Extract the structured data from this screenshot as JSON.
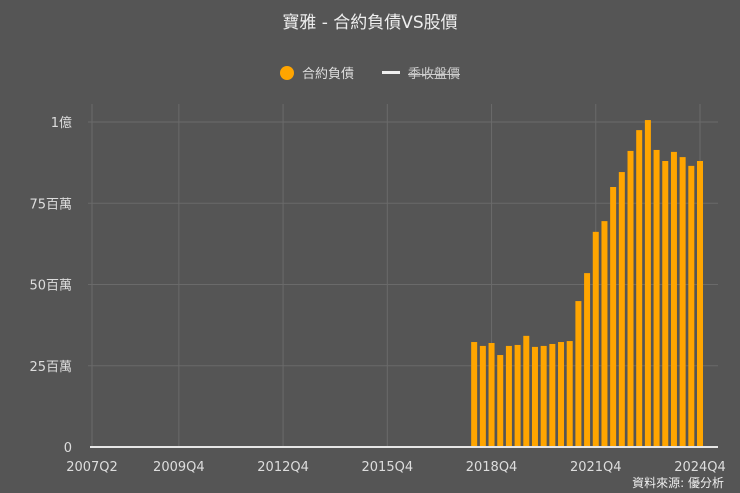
{
  "title": "寶雅 - 合約負債VS股價",
  "legend": [
    {
      "label": "合約負債",
      "marker": "circle",
      "color": "#FFA500",
      "hidden": false
    },
    {
      "label": "季收盤價",
      "marker": "line",
      "color": "#EEEEEE",
      "hidden": true
    }
  ],
  "source": "資料來源: 優分析",
  "colors": {
    "background": "#555555",
    "bar": "#FFA500",
    "grid": "#6a6a6a",
    "axis": "#dddddd"
  },
  "chart_data": {
    "type": "bar",
    "title": "寶雅 - 合約負債VS股價",
    "xlabel": "",
    "ylabel": "",
    "ylim": [
      0,
      100000000
    ],
    "y_ticks": [
      {
        "value": 0,
        "label": "0"
      },
      {
        "value": 25000000,
        "label": "25百萬"
      },
      {
        "value": 50000000,
        "label": "50百萬"
      },
      {
        "value": 75000000,
        "label": "75百萬"
      },
      {
        "value": 100000000,
        "label": "1億"
      }
    ],
    "x_ticks": [
      "2007Q2",
      "2009Q4",
      "2012Q4",
      "2015Q4",
      "2018Q4",
      "2021Q4",
      "2024Q4"
    ],
    "grid": true,
    "legend_position": "top",
    "series": [
      {
        "name": "合約負債",
        "color": "#FFA500",
        "categories": [
          "2018Q2",
          "2018Q3",
          "2018Q4",
          "2019Q1",
          "2019Q2",
          "2019Q3",
          "2019Q4",
          "2020Q1",
          "2020Q2",
          "2020Q3",
          "2020Q4",
          "2021Q1",
          "2021Q2",
          "2021Q3",
          "2021Q4",
          "2022Q1",
          "2022Q2",
          "2022Q3",
          "2022Q4",
          "2023Q1",
          "2023Q2",
          "2023Q3",
          "2023Q4",
          "2024Q1",
          "2024Q2",
          "2024Q3",
          "2024Q4"
        ],
        "values": [
          32300000,
          31100000,
          32000000,
          28300000,
          31100000,
          31400000,
          34200000,
          30800000,
          31100000,
          31700000,
          32300000,
          32600000,
          44900000,
          53500000,
          66200000,
          69500000,
          80000000,
          84600000,
          91100000,
          97500000,
          100600000,
          91400000,
          88000000,
          90800000,
          89200000,
          86500000,
          88000000
        ]
      },
      {
        "name": "季收盤價",
        "hidden": true,
        "values": []
      }
    ]
  }
}
